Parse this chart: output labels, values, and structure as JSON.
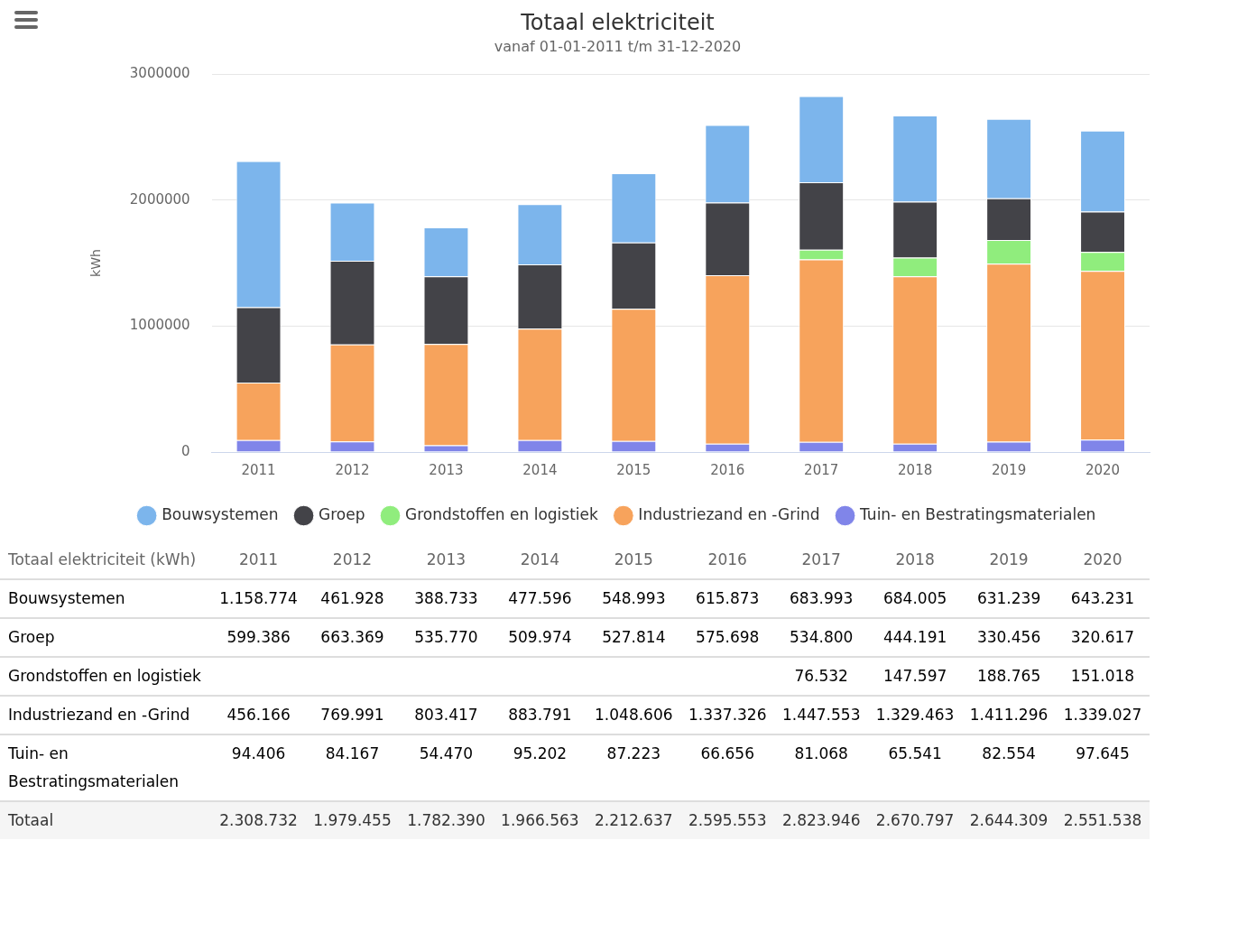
{
  "chart_data": {
    "type": "bar",
    "title": "Totaal elektriciteit",
    "subtitle": "vanaf 01-01-2011 t/m 31-12-2020",
    "ylabel": "kWh",
    "categories": [
      "2011",
      "2012",
      "2013",
      "2014",
      "2015",
      "2016",
      "2017",
      "2018",
      "2019",
      "2020"
    ],
    "stacked": true,
    "ylim": [
      0,
      3000000
    ],
    "yticks": [
      0,
      1000000,
      2000000,
      3000000
    ],
    "grid": "y",
    "legend": "bottom",
    "series": [
      {
        "name": "Tuin- en Bestratingsmaterialen",
        "color": "#8085e9",
        "values": [
          94406,
          84167,
          54470,
          95202,
          87223,
          66656,
          81068,
          65541,
          82554,
          97645
        ],
        "value_labels": [
          "94.406",
          "84.167",
          "54.470",
          "95.202",
          "87.223",
          "66.656",
          "81.068",
          "65.541",
          "82.554",
          "97.645"
        ]
      },
      {
        "name": "Industriezand en -Grind",
        "color": "#f7a35c",
        "values": [
          456166,
          769991,
          803417,
          883791,
          1048606,
          1337326,
          1447553,
          1329463,
          1411296,
          1339027
        ],
        "value_labels": [
          "456.166",
          "769.991",
          "803.417",
          "883.791",
          "1.048.606",
          "1.337.326",
          "1.447.553",
          "1.329.463",
          "1.411.296",
          "1.339.027"
        ]
      },
      {
        "name": "Grondstoffen en logistiek",
        "color": "#90ed7d",
        "values": [
          null,
          null,
          null,
          null,
          null,
          null,
          76532,
          147597,
          188765,
          151018
        ],
        "value_labels": [
          null,
          null,
          null,
          null,
          null,
          null,
          "76.532",
          "147.597",
          "188.765",
          "151.018"
        ]
      },
      {
        "name": "Groep",
        "color": "#434348",
        "values": [
          599386,
          663369,
          535770,
          509974,
          527814,
          575698,
          534800,
          444191,
          330456,
          320617
        ],
        "value_labels": [
          "599.386",
          "663.369",
          "535.770",
          "509.974",
          "527.814",
          "575.698",
          "534.800",
          "444.191",
          "330.456",
          "320.617"
        ]
      },
      {
        "name": "Bouwsystemen",
        "color": "#7cb5ec",
        "values": [
          1158774,
          461928,
          388733,
          477596,
          548993,
          615873,
          683993,
          684005,
          631239,
          643231
        ],
        "value_labels": [
          "1.158.774",
          "461.928",
          "388.733",
          "477.596",
          "548.993",
          "615.873",
          "683.993",
          "684.005",
          "631.239",
          "643.231"
        ]
      }
    ],
    "annotations": [
      "Totaal elektriciteit (kWh)",
      "Totaal",
      "2.308.732",
      "1.979.455",
      "1.782.390",
      "1.966.563",
      "2.212.637",
      "2.595.553",
      "2.823.946",
      "2.670.797",
      "2.644.309",
      "2.551.538"
    ]
  }
}
